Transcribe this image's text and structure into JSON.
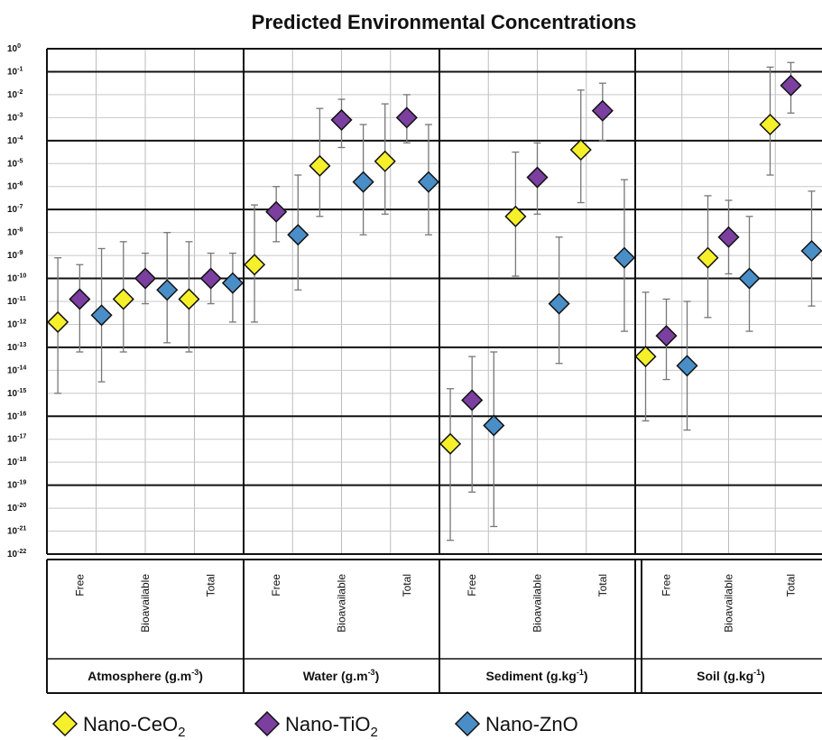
{
  "chart_data": {
    "type": "scatter",
    "title": "Predicted Environmental Concentrations",
    "y_scale": "log10",
    "ylim_exponent": [
      -22,
      0
    ],
    "y_tick_exponents": [
      0,
      -1,
      -2,
      -3,
      -4,
      -5,
      -6,
      -7,
      -8,
      -9,
      -10,
      -11,
      -12,
      -13,
      -14,
      -15,
      -16,
      -17,
      -18,
      -19,
      -20,
      -21,
      -22
    ],
    "y_tick_base": "10",
    "grid": true,
    "compartments": [
      {
        "label": "Atmosphere (g.m",
        "unit_exp": "-3",
        "label_end": ")"
      },
      {
        "label": "Water (g.m",
        "unit_exp": "-3",
        "label_end": ")"
      },
      {
        "label": "Sediment (g.kg",
        "unit_exp": "-1",
        "label_end": ")"
      },
      {
        "label": "Soil (g.kg",
        "unit_exp": "-1",
        "label_end": ")"
      }
    ],
    "categories": [
      "Free",
      "Bioavailable",
      "Total"
    ],
    "series": [
      {
        "name": "Nano-CeO",
        "name_sub": "2",
        "color": "#f5f02a",
        "points": [
          {
            "compartment": 0,
            "category": 0,
            "y_exp": -11.9,
            "lo_exp": -15.0,
            "hi_exp": -9.1
          },
          {
            "compartment": 0,
            "category": 1,
            "y_exp": -10.9,
            "lo_exp": -13.2,
            "hi_exp": -8.4
          },
          {
            "compartment": 0,
            "category": 2,
            "y_exp": -10.9,
            "lo_exp": -13.2,
            "hi_exp": -8.4
          },
          {
            "compartment": 1,
            "category": 0,
            "y_exp": -9.4,
            "lo_exp": -11.9,
            "hi_exp": -6.8
          },
          {
            "compartment": 1,
            "category": 1,
            "y_exp": -5.1,
            "lo_exp": -7.3,
            "hi_exp": -2.6
          },
          {
            "compartment": 1,
            "category": 2,
            "y_exp": -4.9,
            "lo_exp": -7.2,
            "hi_exp": -2.4
          },
          {
            "compartment": 2,
            "category": 0,
            "y_exp": -17.2,
            "lo_exp": -21.4,
            "hi_exp": -14.8
          },
          {
            "compartment": 2,
            "category": 1,
            "y_exp": -7.3,
            "lo_exp": -9.9,
            "hi_exp": -4.5
          },
          {
            "compartment": 2,
            "category": 2,
            "y_exp": -4.4,
            "lo_exp": -6.7,
            "hi_exp": -1.8
          },
          {
            "compartment": 3,
            "category": 0,
            "y_exp": -13.4,
            "lo_exp": -16.2,
            "hi_exp": -10.6
          },
          {
            "compartment": 3,
            "category": 1,
            "y_exp": -9.1,
            "lo_exp": -11.7,
            "hi_exp": -6.4
          },
          {
            "compartment": 3,
            "category": 2,
            "y_exp": -3.3,
            "lo_exp": -5.5,
            "hi_exp": -0.8
          }
        ]
      },
      {
        "name": "Nano-TiO",
        "name_sub": "2",
        "color": "#7b3fa0",
        "points": [
          {
            "compartment": 0,
            "category": 0,
            "y_exp": -10.9,
            "lo_exp": -13.2,
            "hi_exp": -9.4
          },
          {
            "compartment": 0,
            "category": 1,
            "y_exp": -10.0,
            "lo_exp": -11.1,
            "hi_exp": -8.9
          },
          {
            "compartment": 0,
            "category": 2,
            "y_exp": -10.0,
            "lo_exp": -11.1,
            "hi_exp": -8.9
          },
          {
            "compartment": 1,
            "category": 0,
            "y_exp": -7.1,
            "lo_exp": -8.4,
            "hi_exp": -6.0
          },
          {
            "compartment": 1,
            "category": 1,
            "y_exp": -3.1,
            "lo_exp": -4.3,
            "hi_exp": -2.2
          },
          {
            "compartment": 1,
            "category": 2,
            "y_exp": -3.0,
            "lo_exp": -4.1,
            "hi_exp": -2.0
          },
          {
            "compartment": 2,
            "category": 0,
            "y_exp": -15.3,
            "lo_exp": -19.3,
            "hi_exp": -13.4
          },
          {
            "compartment": 2,
            "category": 1,
            "y_exp": -5.6,
            "lo_exp": -7.2,
            "hi_exp": -4.1
          },
          {
            "compartment": 2,
            "category": 2,
            "y_exp": -2.7,
            "lo_exp": -4.0,
            "hi_exp": -1.5
          },
          {
            "compartment": 3,
            "category": 0,
            "y_exp": -12.5,
            "lo_exp": -14.4,
            "hi_exp": -10.9
          },
          {
            "compartment": 3,
            "category": 1,
            "y_exp": -8.2,
            "lo_exp": -9.8,
            "hi_exp": -6.6
          },
          {
            "compartment": 3,
            "category": 2,
            "y_exp": -1.6,
            "lo_exp": -2.8,
            "hi_exp": -0.6
          }
        ]
      },
      {
        "name": "Nano-ZnO",
        "name_sub": "",
        "color": "#4a8ec8",
        "points": [
          {
            "compartment": 0,
            "category": 0,
            "y_exp": -11.6,
            "lo_exp": -14.5,
            "hi_exp": -8.7
          },
          {
            "compartment": 0,
            "category": 1,
            "y_exp": -10.5,
            "lo_exp": -12.8,
            "hi_exp": -8.0
          },
          {
            "compartment": 0,
            "category": 2,
            "y_exp": -10.2,
            "lo_exp": -11.9,
            "hi_exp": -8.9
          },
          {
            "compartment": 1,
            "category": 0,
            "y_exp": -8.1,
            "lo_exp": -10.5,
            "hi_exp": -5.5
          },
          {
            "compartment": 1,
            "category": 1,
            "y_exp": -5.8,
            "lo_exp": -8.1,
            "hi_exp": -3.3
          },
          {
            "compartment": 1,
            "category": 2,
            "y_exp": -5.8,
            "lo_exp": -8.1,
            "hi_exp": -3.3
          },
          {
            "compartment": 2,
            "category": 0,
            "y_exp": -16.4,
            "lo_exp": -20.8,
            "hi_exp": -13.2
          },
          {
            "compartment": 2,
            "category": 1,
            "y_exp": -11.1,
            "lo_exp": -13.7,
            "hi_exp": -8.2
          },
          {
            "compartment": 2,
            "category": 2,
            "y_exp": -9.1,
            "lo_exp": -12.3,
            "hi_exp": -5.7
          },
          {
            "compartment": 3,
            "category": 0,
            "y_exp": -13.8,
            "lo_exp": -16.6,
            "hi_exp": -11.0
          },
          {
            "compartment": 3,
            "category": 1,
            "y_exp": -10.0,
            "lo_exp": -12.3,
            "hi_exp": -7.3
          },
          {
            "compartment": 3,
            "category": 2,
            "y_exp": -8.8,
            "lo_exp": -11.2,
            "hi_exp": -6.2
          }
        ]
      }
    ],
    "legend_position": "bottom"
  }
}
